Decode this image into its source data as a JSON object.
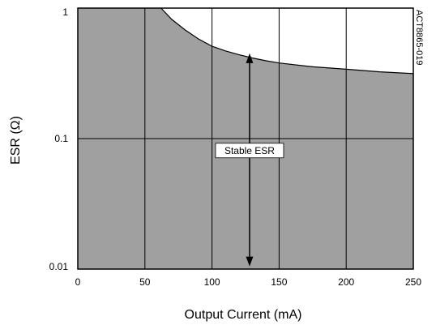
{
  "chart_data": {
    "type": "area",
    "xlabel": "Output Current (mA)",
    "ylabel": "ESR (Ω)",
    "xlim": [
      0,
      250
    ],
    "ylim": [
      0.01,
      1
    ],
    "yscale": "log",
    "grid": true,
    "x_ticks": [
      0,
      50,
      100,
      150,
      200,
      250
    ],
    "x_tick_labels": [
      "0",
      "50",
      "100",
      "150",
      "200",
      "250"
    ],
    "y_ticks": [
      0.01,
      0.1,
      1
    ],
    "y_tick_labels": [
      "0.01",
      "0.1",
      "1"
    ],
    "series": [
      {
        "x": [
          62,
          70,
          80,
          90,
          100,
          110,
          120,
          130,
          140,
          150,
          175,
          200,
          225,
          250
        ],
        "y": [
          1.0,
          0.82,
          0.68,
          0.58,
          0.51,
          0.47,
          0.44,
          0.415,
          0.395,
          0.38,
          0.355,
          0.34,
          0.325,
          0.315
        ],
        "fill_color": "#a0a0a0"
      }
    ],
    "annotation": {
      "text": "Stable ESR",
      "x": 128,
      "arrow_y_top": 0.45,
      "arrow_y_bottom": 0.0105,
      "y": 0.081
    },
    "side_label": "ACT8865-019"
  }
}
